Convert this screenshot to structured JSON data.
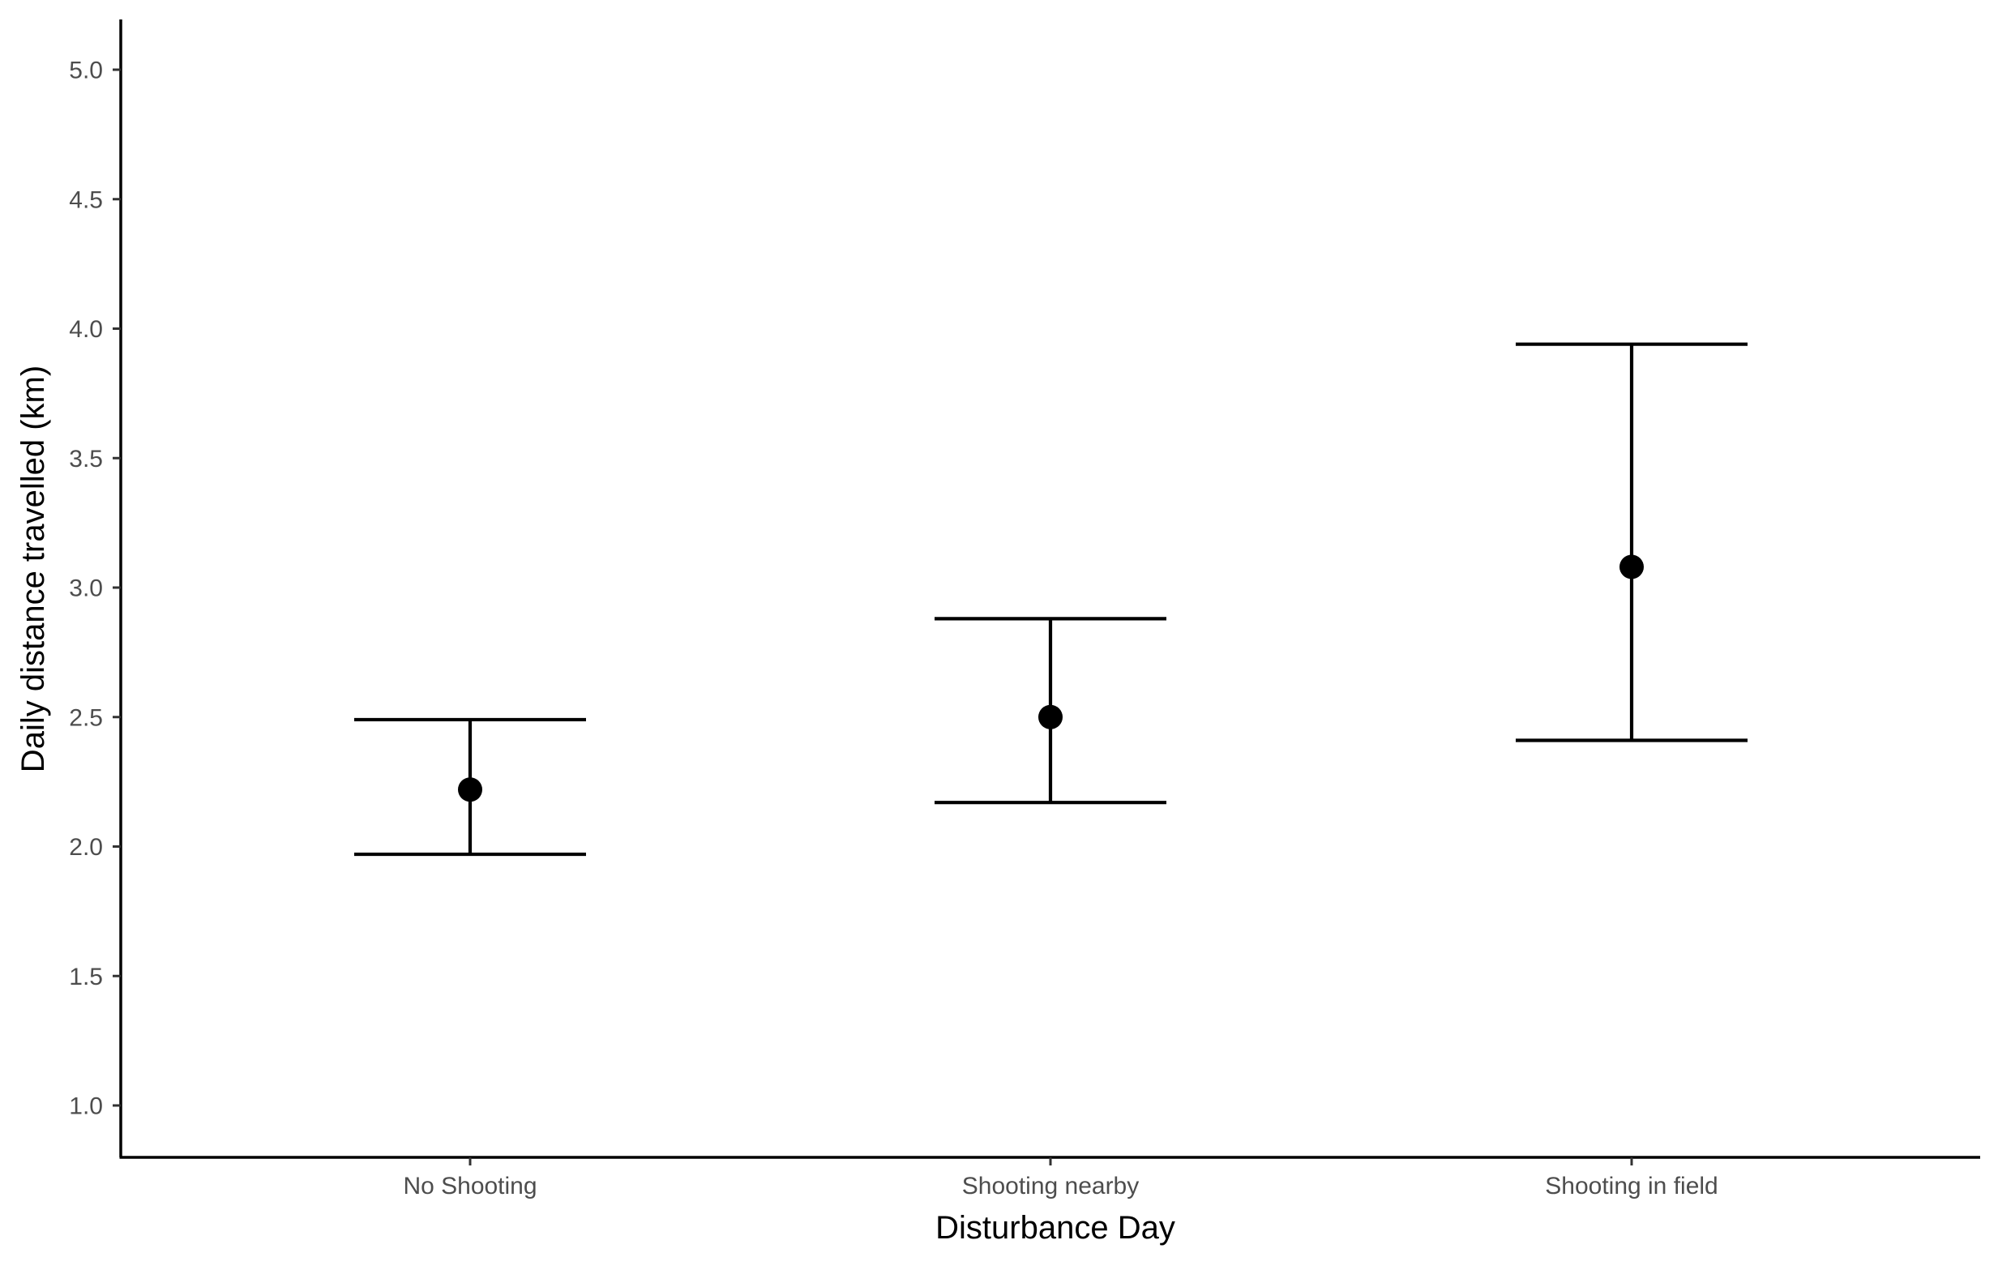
{
  "chart_data": {
    "type": "scatter",
    "title": "",
    "xlabel": "Disturbance Day",
    "ylabel": "Daily distance travelled (km)",
    "categories": [
      "No Shooting",
      "Shooting nearby",
      "Shooting in field"
    ],
    "series": [
      {
        "values": [
          2.22,
          2.5,
          3.08
        ],
        "lower": [
          1.97,
          2.17,
          2.41
        ],
        "upper": [
          2.49,
          2.88,
          3.94
        ]
      }
    ],
    "ylim": [
      0.8,
      5.2
    ],
    "y_ticks": [
      "1.0",
      "1.5",
      "2.0",
      "2.5",
      "3.0",
      "3.5",
      "4.0",
      "4.5",
      "5.0"
    ],
    "grid": false,
    "legend": "none",
    "colors": {
      "point": "#000000",
      "axis": "#000000",
      "tick_text": "#4d4d4d"
    }
  }
}
